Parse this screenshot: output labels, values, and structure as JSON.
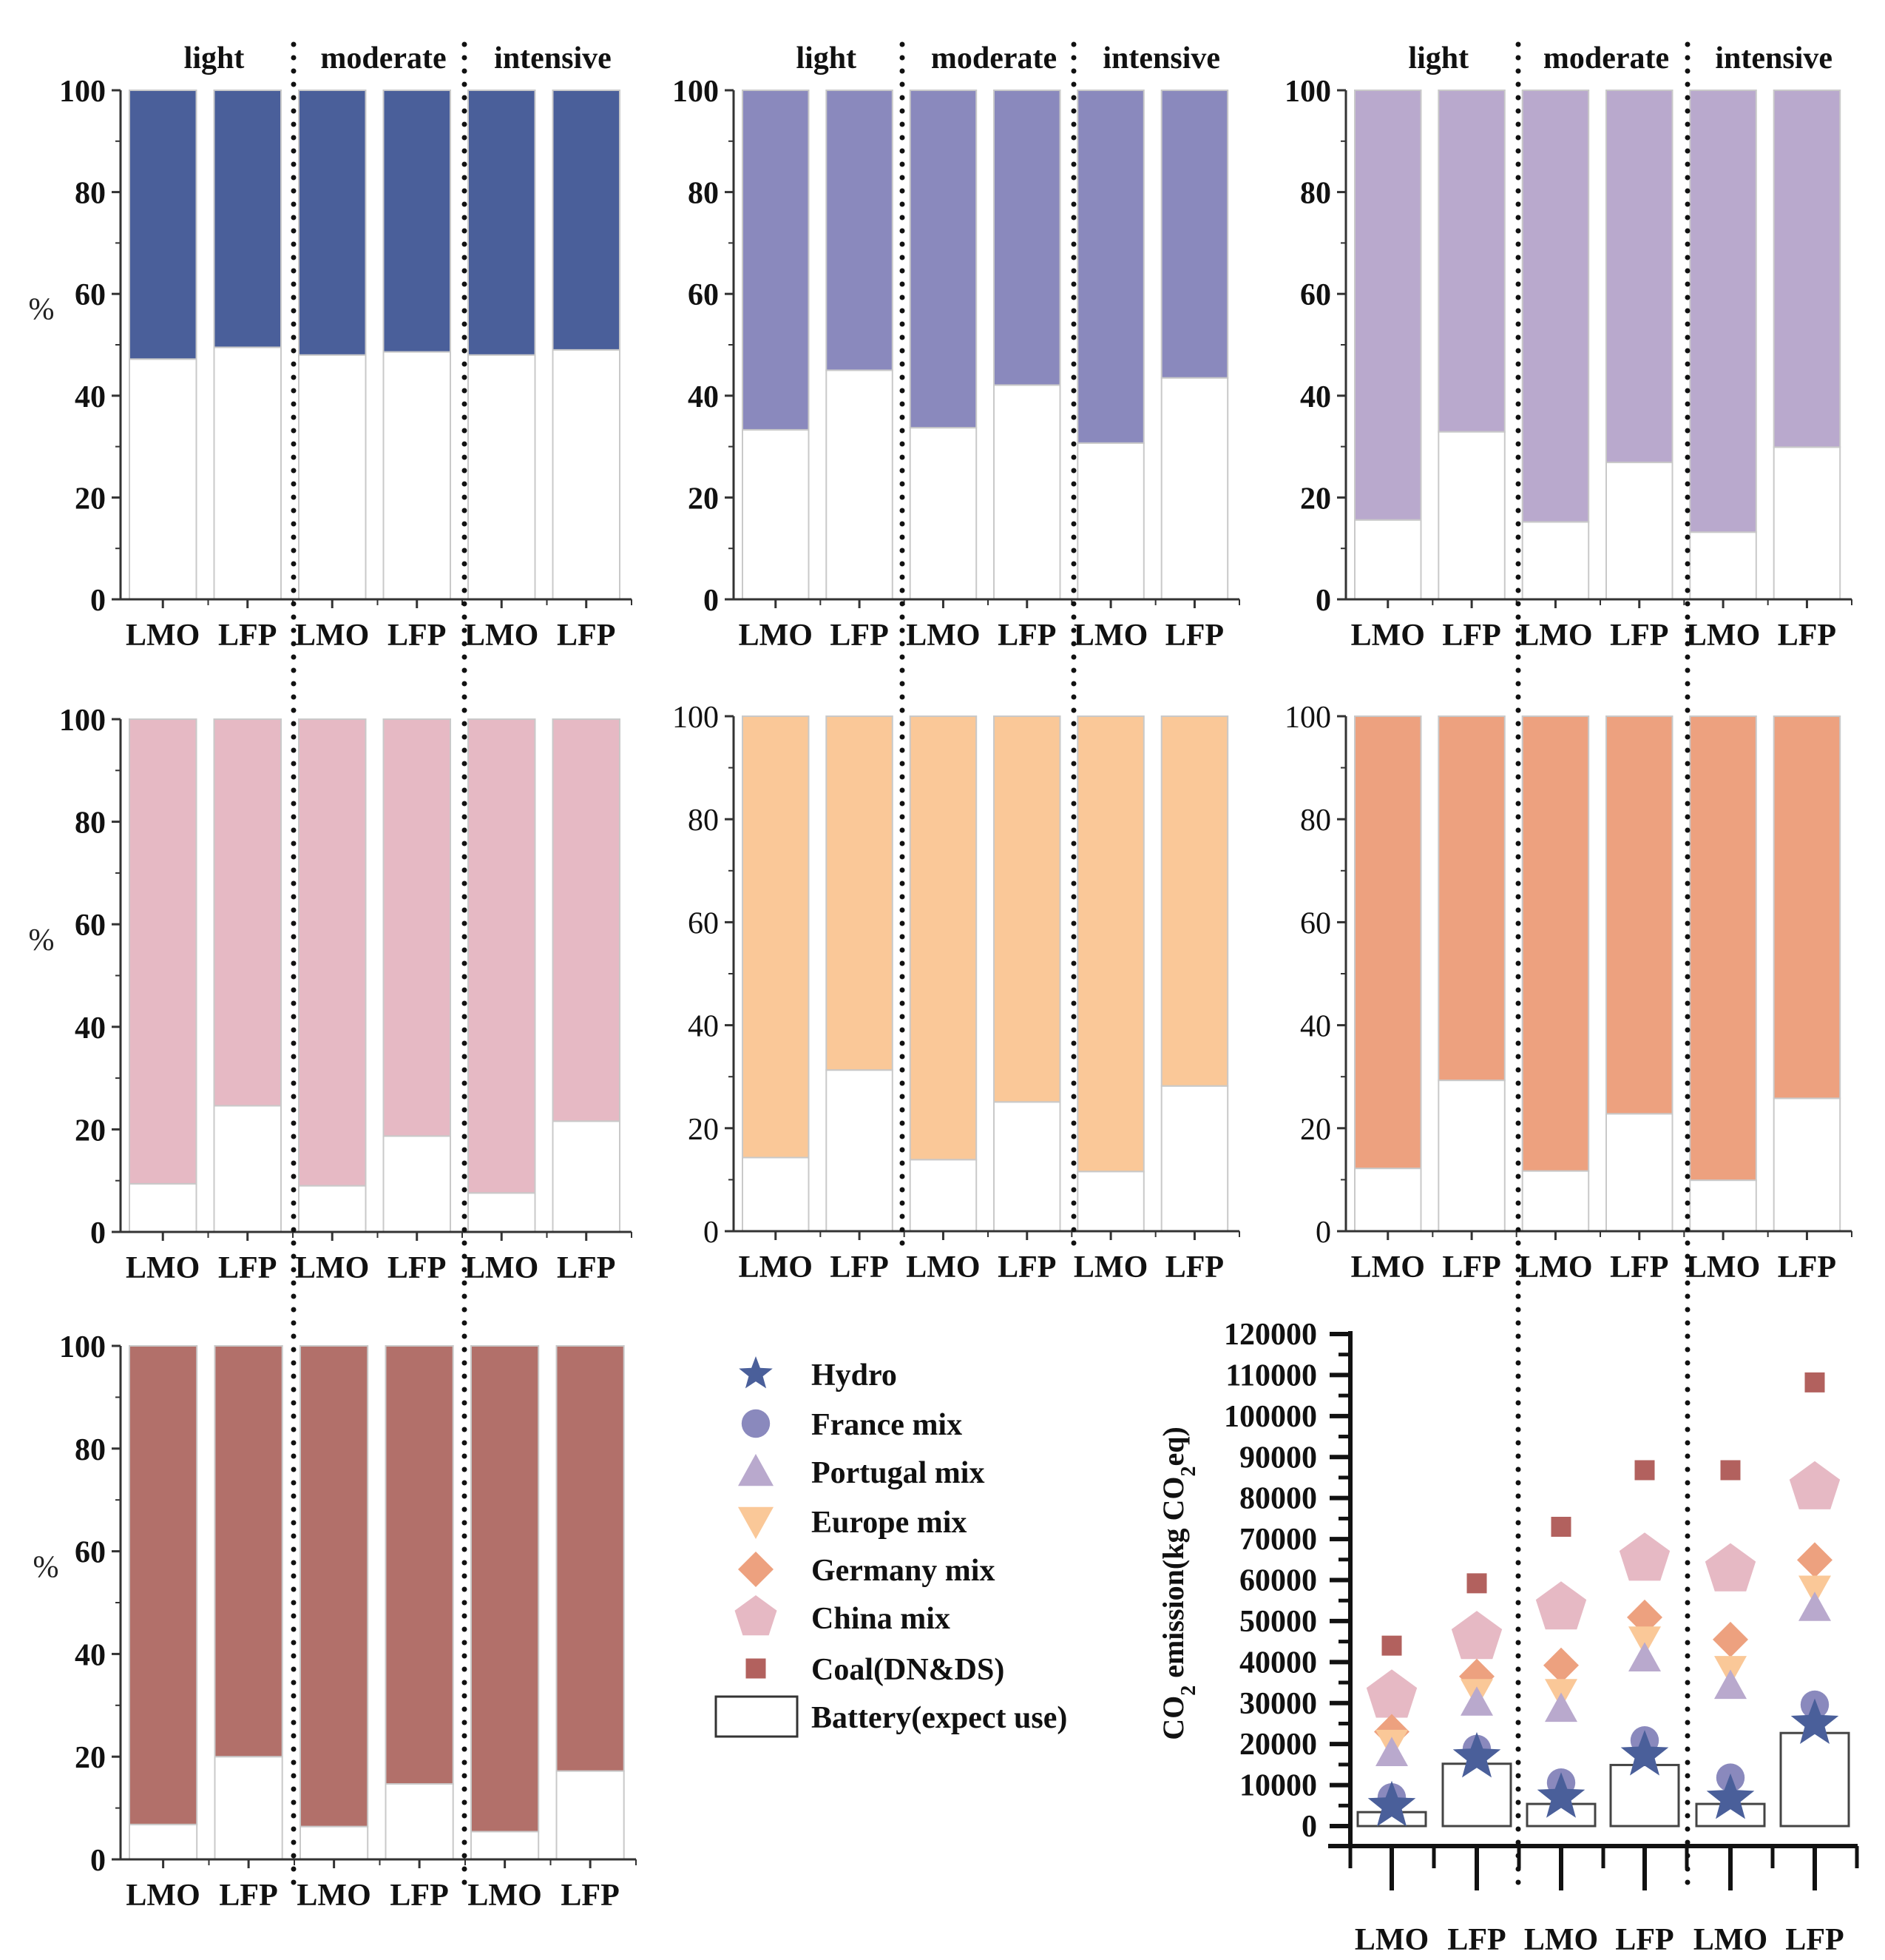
{
  "chart_data": [
    {
      "type": "bar",
      "panel": "stacked-share-hydro",
      "stacked": true,
      "ylabel": "%",
      "ylim": [
        0,
        100
      ],
      "yticks": [
        "0",
        "20",
        "40",
        "60",
        "80",
        "100"
      ],
      "groups": [
        "light",
        "moderate",
        "intensive"
      ],
      "categories": [
        "LMO",
        "LFP",
        "LMO",
        "LFP",
        "LMO",
        "LFP"
      ],
      "series": [
        {
          "name": "Battery(expect use)",
          "color": "#ffffff",
          "values": [
            47.2,
            49.5,
            48.0,
            48.6,
            48.0,
            49.0
          ]
        },
        {
          "name": "Hydro",
          "color": "#4a5f9a",
          "values": [
            52.8,
            50.5,
            52.0,
            51.4,
            52.0,
            51.0
          ]
        }
      ],
      "tick_weight": "bold"
    },
    {
      "type": "bar",
      "panel": "stacked-share-france",
      "stacked": true,
      "ylabel": "",
      "ylim": [
        0,
        100
      ],
      "yticks": [
        "0",
        "20",
        "40",
        "60",
        "80",
        "100"
      ],
      "groups": [
        "light",
        "moderate",
        "intensive"
      ],
      "categories": [
        "LMO",
        "LFP",
        "LMO",
        "LFP",
        "LMO",
        "LFP"
      ],
      "series": [
        {
          "name": "Battery(expect use)",
          "color": "#ffffff",
          "values": [
            33.3,
            45.0,
            33.7,
            42.1,
            30.7,
            43.5
          ]
        },
        {
          "name": "France mix",
          "color": "#8a89bd",
          "values": [
            66.7,
            55.0,
            66.3,
            57.9,
            69.3,
            56.5
          ]
        }
      ],
      "tick_weight": "bold"
    },
    {
      "type": "bar",
      "panel": "stacked-share-portugal",
      "stacked": true,
      "ylabel": "",
      "ylim": [
        0,
        100
      ],
      "yticks": [
        "0",
        "20",
        "40",
        "60",
        "80",
        "100"
      ],
      "groups": [
        "light",
        "moderate",
        "intensive"
      ],
      "categories": [
        "LMO",
        "LFP",
        "LMO",
        "LFP",
        "LMO",
        "LFP"
      ],
      "series": [
        {
          "name": "Battery(expect use)",
          "color": "#ffffff",
          "values": [
            15.6,
            32.9,
            15.2,
            26.9,
            13.2,
            29.9
          ]
        },
        {
          "name": "Portugal mix",
          "color": "#b9a9cd",
          "values": [
            84.4,
            67.1,
            84.8,
            73.1,
            86.8,
            70.1
          ]
        }
      ],
      "tick_weight": "bold"
    },
    {
      "type": "bar",
      "panel": "stacked-share-china",
      "stacked": true,
      "ylabel": "%",
      "ylim": [
        0,
        100
      ],
      "yticks": [
        "0",
        "20",
        "40",
        "60",
        "80",
        "100"
      ],
      "groups": [],
      "categories": [
        "LMO",
        "LFP",
        "LMO",
        "LFP",
        "LMO",
        "LFP"
      ],
      "series": [
        {
          "name": "Battery(expect use)",
          "color": "#ffffff",
          "values": [
            9.4,
            24.6,
            9.0,
            18.7,
            7.6,
            21.6
          ]
        },
        {
          "name": "China mix",
          "color": "#e6b9c4",
          "values": [
            90.6,
            75.4,
            91.0,
            81.3,
            92.4,
            78.4
          ]
        }
      ],
      "tick_weight": "bold"
    },
    {
      "type": "bar",
      "panel": "stacked-share-europe",
      "stacked": true,
      "ylabel": "",
      "ylim": [
        0,
        100
      ],
      "yticks": [
        "0",
        "20",
        "40",
        "60",
        "80",
        "100"
      ],
      "groups": [],
      "categories": [
        "LMO",
        "LFP",
        "LMO",
        "LFP",
        "LMO",
        "LFP"
      ],
      "series": [
        {
          "name": "Battery(expect use)",
          "color": "#ffffff",
          "values": [
            14.3,
            31.3,
            13.9,
            25.1,
            11.6,
            28.2
          ]
        },
        {
          "name": "Europe mix",
          "color": "#fac898",
          "values": [
            85.7,
            68.7,
            86.1,
            74.9,
            88.4,
            71.8
          ]
        }
      ],
      "tick_weight": "normal"
    },
    {
      "type": "bar",
      "panel": "stacked-share-germany",
      "stacked": true,
      "ylabel": "",
      "ylim": [
        0,
        100
      ],
      "yticks": [
        "0",
        "20",
        "40",
        "60",
        "80",
        "100"
      ],
      "groups": [],
      "categories": [
        "LMO",
        "LFP",
        "LMO",
        "LFP",
        "LMO",
        "LFP"
      ],
      "series": [
        {
          "name": "Battery(expect use)",
          "color": "#ffffff",
          "values": [
            12.2,
            29.3,
            11.7,
            22.8,
            9.9,
            25.8
          ]
        },
        {
          "name": "Germany mix",
          "color": "#eda17f",
          "values": [
            87.8,
            70.7,
            88.3,
            77.2,
            90.1,
            74.2
          ]
        }
      ],
      "tick_weight": "normal"
    },
    {
      "type": "bar",
      "panel": "stacked-share-coal",
      "stacked": true,
      "ylabel": "%",
      "ylim": [
        0,
        100
      ],
      "yticks": [
        "0",
        "20",
        "40",
        "60",
        "80",
        "100"
      ],
      "groups": [],
      "categories": [
        "LMO",
        "LFP",
        "LMO",
        "LFP",
        "LMO",
        "LFP"
      ],
      "series": [
        {
          "name": "Battery(expect use)",
          "color": "#ffffff",
          "values": [
            6.8,
            20.0,
            6.4,
            14.7,
            5.4,
            17.2
          ]
        },
        {
          "name": "Coal(DN&DS)",
          "color": "#b2706a",
          "values": [
            93.2,
            80.0,
            93.6,
            85.3,
            94.6,
            82.8
          ]
        }
      ],
      "tick_weight": "bold"
    },
    {
      "type": "scatter",
      "panel": "co2-emission",
      "ylabel": "CO2 emission(kg CO2eq)",
      "ylabel_parts": [
        "CO",
        "2",
        " emission(kg CO",
        "2",
        "eq)"
      ],
      "ylim": [
        0,
        120000
      ],
      "yticks": [
        "0",
        "10000",
        "20000",
        "30000",
        "40000",
        "50000",
        "60000",
        "70000",
        "80000",
        "90000",
        "100000",
        "110000",
        "120000"
      ],
      "categories": [
        "LMO",
        "LFP",
        "LMO",
        "LFP",
        "LMO",
        "LFP"
      ],
      "bars": {
        "name": "Battery(expect use)",
        "values": [
          3400,
          15200,
          5400,
          14900,
          5400,
          22700
        ]
      },
      "series": [
        {
          "name": "Hydro",
          "marker": "star",
          "color": "#4a5f9a",
          "values": [
            4900,
            16800,
            7000,
            17300,
            6700,
            25000
          ]
        },
        {
          "name": "France mix",
          "marker": "circle",
          "color": "#8a89bd",
          "values": [
            7000,
            18800,
            10600,
            20900,
            11800,
            29600
          ]
        },
        {
          "name": "Portugal mix",
          "marker": "triangle-up",
          "color": "#b9a9cd",
          "values": [
            17800,
            30100,
            28600,
            40900,
            34200,
            53200
          ]
        },
        {
          "name": "Europe mix",
          "marker": "triangle-down",
          "color": "#fac898",
          "values": [
            20300,
            32700,
            32700,
            45500,
            38300,
            57900
          ]
        },
        {
          "name": "Germany mix",
          "marker": "diamond",
          "color": "#eda17f",
          "values": [
            23000,
            36500,
            39200,
            50900,
            45500,
            64900
          ]
        },
        {
          "name": "China mix",
          "marker": "pentagon",
          "color": "#e6b9c4",
          "values": [
            31700,
            46000,
            53200,
            65100,
            62500,
            82500
          ]
        },
        {
          "name": "Coal(DN&DS)",
          "marker": "square",
          "color": "#b2615e",
          "values": [
            44000,
            59200,
            73000,
            86800,
            86800,
            108200
          ]
        }
      ]
    }
  ],
  "legend": {
    "items": [
      {
        "label": "Hydro",
        "marker": "star",
        "color": "#4a5f9a"
      },
      {
        "label": "France mix",
        "marker": "circle",
        "color": "#8a89bd"
      },
      {
        "label": "Portugal mix",
        "marker": "triangle-up",
        "color": "#b9a9cd"
      },
      {
        "label": "Europe mix",
        "marker": "triangle-down",
        "color": "#fac898"
      },
      {
        "label": "Germany mix",
        "marker": "diamond",
        "color": "#eda17f"
      },
      {
        "label": "China mix",
        "marker": "pentagon",
        "color": "#e6b9c4"
      },
      {
        "label": "Coal(DN&DS)",
        "marker": "square",
        "color": "#b2615e"
      },
      {
        "label": "Battery(expect use)",
        "marker": "box",
        "color": "#ffffff"
      }
    ]
  }
}
